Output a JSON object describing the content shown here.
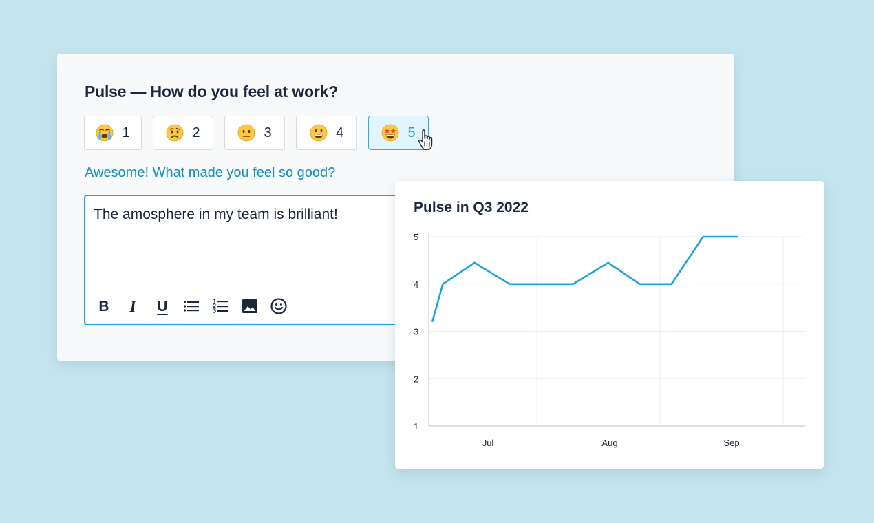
{
  "survey": {
    "title": "Pulse — How do you feel at work?",
    "ratings": [
      {
        "label": "1",
        "emoji": "loudly-crying-face",
        "selected": false
      },
      {
        "label": "2",
        "emoji": "worried-face",
        "selected": false
      },
      {
        "label": "3",
        "emoji": "neutral-face",
        "selected": false
      },
      {
        "label": "4",
        "emoji": "grinning-face",
        "selected": false
      },
      {
        "label": "5",
        "emoji": "star-struck-face",
        "selected": true
      }
    ],
    "followup_prompt": "Awesome! What made you feel so good?",
    "response_text": "The amosphere in my team is brilliant!",
    "toolbar": {
      "bold": "B",
      "italic": "I",
      "underline": "U",
      "icons": [
        "bold-icon",
        "italic-icon",
        "underline-icon",
        "bulleted-list-icon",
        "numbered-list-icon",
        "image-icon",
        "emoji-icon"
      ]
    },
    "accent_color": "#1aa7df"
  },
  "chart_data": {
    "type": "line",
    "title": "Pulse in Q3 2022",
    "y_ticks": [
      "1",
      "2",
      "3",
      "4",
      "5"
    ],
    "x_ticks": [
      "Jul",
      "Aug",
      "Sep"
    ],
    "ylim": [
      1,
      5
    ],
    "grid": true,
    "series": [
      {
        "color": "#1aa3e2",
        "points": [
          {
            "x": "2022-06-16",
            "y": 3.2
          },
          {
            "x": "2022-06-19",
            "y": 4.0
          },
          {
            "x": "2022-06-28",
            "y": 4.45
          },
          {
            "x": "2022-07-08",
            "y": 4.0
          },
          {
            "x": "2022-07-26",
            "y": 4.0
          },
          {
            "x": "2022-08-05",
            "y": 4.45
          },
          {
            "x": "2022-08-14",
            "y": 4.0
          },
          {
            "x": "2022-08-23",
            "y": 4.0
          },
          {
            "x": "2022-09-01",
            "y": 5.0
          },
          {
            "x": "2022-09-11",
            "y": 5.0
          }
        ]
      }
    ]
  }
}
